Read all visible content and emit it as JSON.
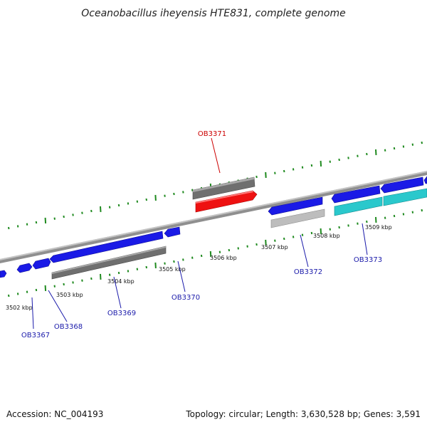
{
  "title": "Oceanobacillus iheyensis HTE831, complete genome",
  "footer": {
    "accession": "Accession: NC_004193",
    "summary": "Topology: circular; Length: 3,630,528 bp; Genes: 3,591"
  },
  "colors": {
    "axis": "#8a8a8a",
    "tick": "#1f8a1f",
    "forward_gene": "#1a1ae6",
    "reverse_gene": "#1a1ae6",
    "rna": "#6f6f6f",
    "highlight": "#ee1111",
    "highlight_label": "#cc0000",
    "cyan_gene": "#2ac8cc",
    "pseudo": "#bdbdbd",
    "label": "#1a1aaa"
  },
  "scale": {
    "tick_labels": [
      "3502 kbp",
      "3503 kbp",
      "3504 kbp",
      "3505 kbp",
      "3506 kbp",
      "3507 kbp",
      "3508 kbp",
      "3509 kbp"
    ]
  },
  "genes": [
    {
      "id": "OB3367",
      "label": "OB3367",
      "kind": "forward_gene"
    },
    {
      "id": "OB3368",
      "label": "OB3368",
      "kind": "forward_gene"
    },
    {
      "id": "OB3369",
      "label": "OB3369",
      "kind": "rna"
    },
    {
      "id": "OB3370",
      "label": "OB3370",
      "kind": "forward_gene"
    },
    {
      "id": "OB3371",
      "label": "OB3371",
      "kind": "highlight"
    },
    {
      "id": "OB3372",
      "label": "OB3372",
      "kind": "forward_gene"
    },
    {
      "id": "OB3373",
      "label": "OB3373",
      "kind": "cyan_gene"
    }
  ]
}
